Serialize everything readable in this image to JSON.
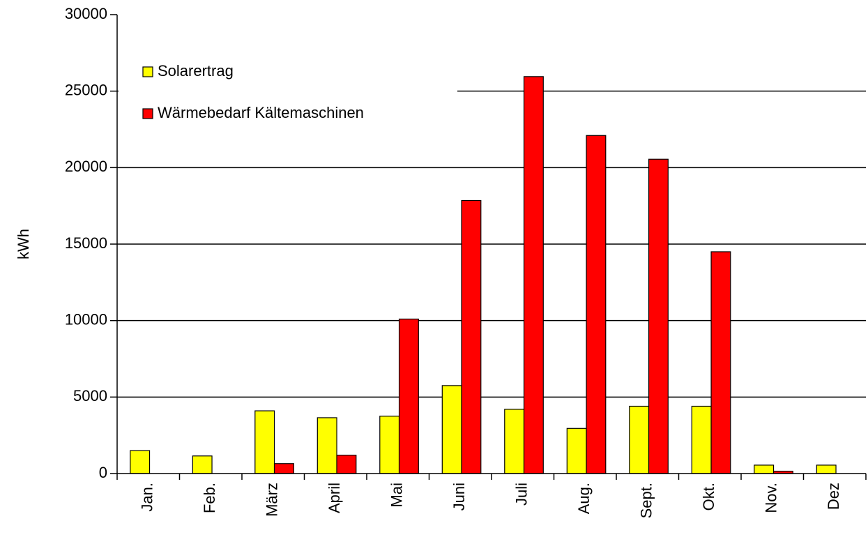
{
  "chart_data": {
    "type": "bar",
    "y_label": "kWh",
    "categories": [
      "Jan.",
      "Feb.",
      "März",
      "April",
      "Mai",
      "Juni",
      "Juli",
      "Aug.",
      "Sept.",
      "Okt.",
      "Nov.",
      "Dez"
    ],
    "series": [
      {
        "name": "Solarertrag",
        "color": "#ffff00",
        "values": [
          1500,
          1150,
          4100,
          3650,
          3750,
          5750,
          4200,
          2950,
          4400,
          4400,
          550,
          550
        ]
      },
      {
        "name": "Wärmebedarf Kältemaschinen",
        "color": "#ff0000",
        "values": [
          0,
          0,
          650,
          1200,
          10100,
          17850,
          25950,
          22100,
          20550,
          14500,
          150,
          0
        ]
      }
    ],
    "ylim": [
      0,
      30000
    ],
    "yticks": [
      0,
      5000,
      10000,
      15000,
      20000,
      25000,
      30000
    ],
    "grid": true,
    "legend": "upper left"
  }
}
